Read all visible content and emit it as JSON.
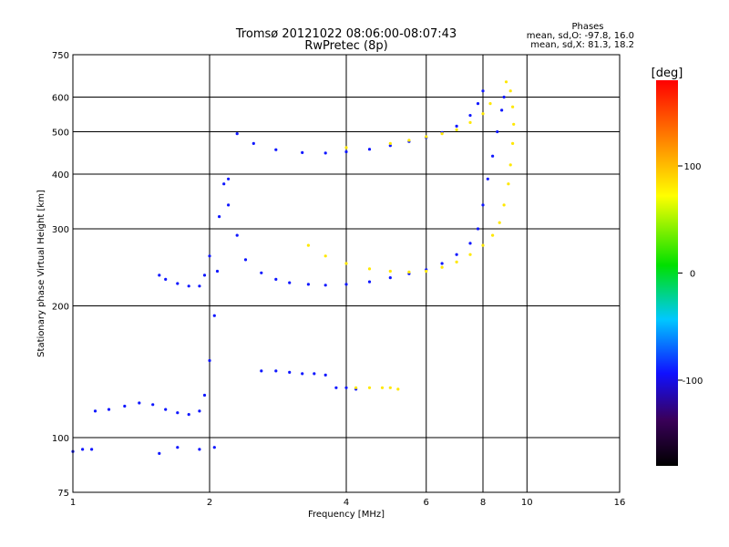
{
  "chart_data": {
    "type": "scatter",
    "title": "Tromsø 20121022 08:06:00-08:07:43",
    "subtitle": "RwPretec (8p)",
    "xlabel": "Frequency [MHz]",
    "ylabel": "Stationary phase Virtual Height [km]",
    "x_scale": "log",
    "y_scale": "log",
    "xlim": [
      1,
      16
    ],
    "ylim": [
      75,
      750
    ],
    "x_ticks": [
      1,
      2,
      4,
      6,
      8,
      10,
      16
    ],
    "y_ticks": [
      75,
      100,
      200,
      300,
      400,
      500,
      600,
      750
    ],
    "grid": true,
    "legend": {
      "title": "Phases",
      "line1": "mean, sd,O: -97.8, 16.0",
      "line2": "mean, sd,X:  81.3, 18.2"
    },
    "colorbar": {
      "label": "[deg]",
      "range": [
        -180,
        180
      ],
      "ticks": [
        100,
        0,
        -100
      ]
    },
    "o_trace_phase_deg": -98,
    "x_trace_phase_deg": 81,
    "traces": [
      {
        "phase": -98,
        "points": [
          [
            1.0,
            93
          ],
          [
            1.05,
            94
          ],
          [
            1.1,
            94
          ],
          [
            1.12,
            115
          ],
          [
            1.2,
            116
          ],
          [
            1.3,
            118
          ],
          [
            1.4,
            120
          ],
          [
            1.5,
            119
          ],
          [
            1.6,
            116
          ],
          [
            1.7,
            114
          ],
          [
            1.8,
            113
          ],
          [
            1.9,
            115
          ],
          [
            1.95,
            125
          ],
          [
            2.0,
            150
          ],
          [
            2.05,
            190
          ],
          [
            2.08,
            240
          ],
          [
            2.1,
            320
          ],
          [
            2.15,
            380
          ],
          [
            2.2,
            340
          ]
        ]
      },
      {
        "phase": -98,
        "points": [
          [
            1.55,
            235
          ],
          [
            1.6,
            230
          ],
          [
            1.7,
            225
          ],
          [
            1.8,
            222
          ],
          [
            1.9,
            222
          ],
          [
            1.95,
            235
          ],
          [
            2.0,
            260
          ]
        ]
      },
      {
        "phase": -98,
        "points": [
          [
            1.55,
            92
          ],
          [
            1.7,
            95
          ],
          [
            1.9,
            94
          ],
          [
            2.05,
            95
          ]
        ]
      },
      {
        "phase": -98,
        "points": [
          [
            2.2,
            390
          ],
          [
            2.3,
            290
          ],
          [
            2.4,
            255
          ],
          [
            2.6,
            238
          ],
          [
            2.8,
            230
          ],
          [
            3.0,
            226
          ],
          [
            3.3,
            224
          ],
          [
            3.6,
            223
          ],
          [
            4.0,
            224
          ],
          [
            4.5,
            227
          ],
          [
            5.0,
            232
          ],
          [
            5.5,
            237
          ],
          [
            6.0,
            242
          ],
          [
            6.5,
            250
          ],
          [
            7.0,
            262
          ],
          [
            7.5,
            278
          ],
          [
            7.8,
            300
          ],
          [
            8.0,
            340
          ],
          [
            8.2,
            390
          ],
          [
            8.4,
            440
          ],
          [
            8.6,
            500
          ],
          [
            8.8,
            560
          ],
          [
            8.9,
            600
          ]
        ]
      },
      {
        "phase": -98,
        "points": [
          [
            2.3,
            495
          ],
          [
            2.5,
            470
          ],
          [
            2.8,
            455
          ],
          [
            3.2,
            448
          ],
          [
            3.6,
            447
          ],
          [
            4.0,
            450
          ],
          [
            4.5,
            456
          ],
          [
            5.0,
            465
          ],
          [
            5.5,
            475
          ],
          [
            6.0,
            485
          ],
          [
            6.5,
            498
          ],
          [
            7.0,
            515
          ],
          [
            7.5,
            545
          ],
          [
            7.8,
            580
          ],
          [
            8.0,
            620
          ]
        ]
      },
      {
        "phase": -98,
        "points": [
          [
            2.6,
            142
          ],
          [
            2.8,
            142
          ],
          [
            3.0,
            141
          ],
          [
            3.2,
            140
          ],
          [
            3.4,
            140
          ],
          [
            3.6,
            139
          ]
        ]
      },
      {
        "phase": -98,
        "points": [
          [
            3.8,
            130
          ],
          [
            4.0,
            130
          ],
          [
            4.2,
            129
          ]
        ]
      },
      {
        "phase": 81,
        "points": [
          [
            3.3,
            275
          ],
          [
            3.6,
            260
          ],
          [
            4.0,
            250
          ],
          [
            4.5,
            243
          ],
          [
            5.0,
            240
          ],
          [
            5.5,
            239
          ],
          [
            6.0,
            240
          ],
          [
            6.5,
            245
          ],
          [
            7.0,
            252
          ],
          [
            7.5,
            262
          ],
          [
            8.0,
            275
          ],
          [
            8.4,
            290
          ],
          [
            8.7,
            310
          ],
          [
            8.9,
            340
          ],
          [
            9.1,
            380
          ],
          [
            9.2,
            420
          ],
          [
            9.3,
            470
          ],
          [
            9.35,
            520
          ],
          [
            9.3,
            570
          ],
          [
            9.2,
            620
          ],
          [
            9.0,
            650
          ]
        ]
      },
      {
        "phase": 81,
        "points": [
          [
            4.0,
            460
          ],
          [
            5.0,
            470
          ],
          [
            5.5,
            478
          ],
          [
            6.0,
            487
          ],
          [
            6.5,
            495
          ],
          [
            7.0,
            505
          ],
          [
            7.5,
            525
          ],
          [
            8.0,
            550
          ],
          [
            8.3,
            580
          ]
        ]
      },
      {
        "phase": 81,
        "points": [
          [
            4.2,
            130
          ],
          [
            4.5,
            130
          ],
          [
            4.8,
            130
          ],
          [
            5.0,
            130
          ],
          [
            5.2,
            129
          ]
        ]
      }
    ]
  }
}
